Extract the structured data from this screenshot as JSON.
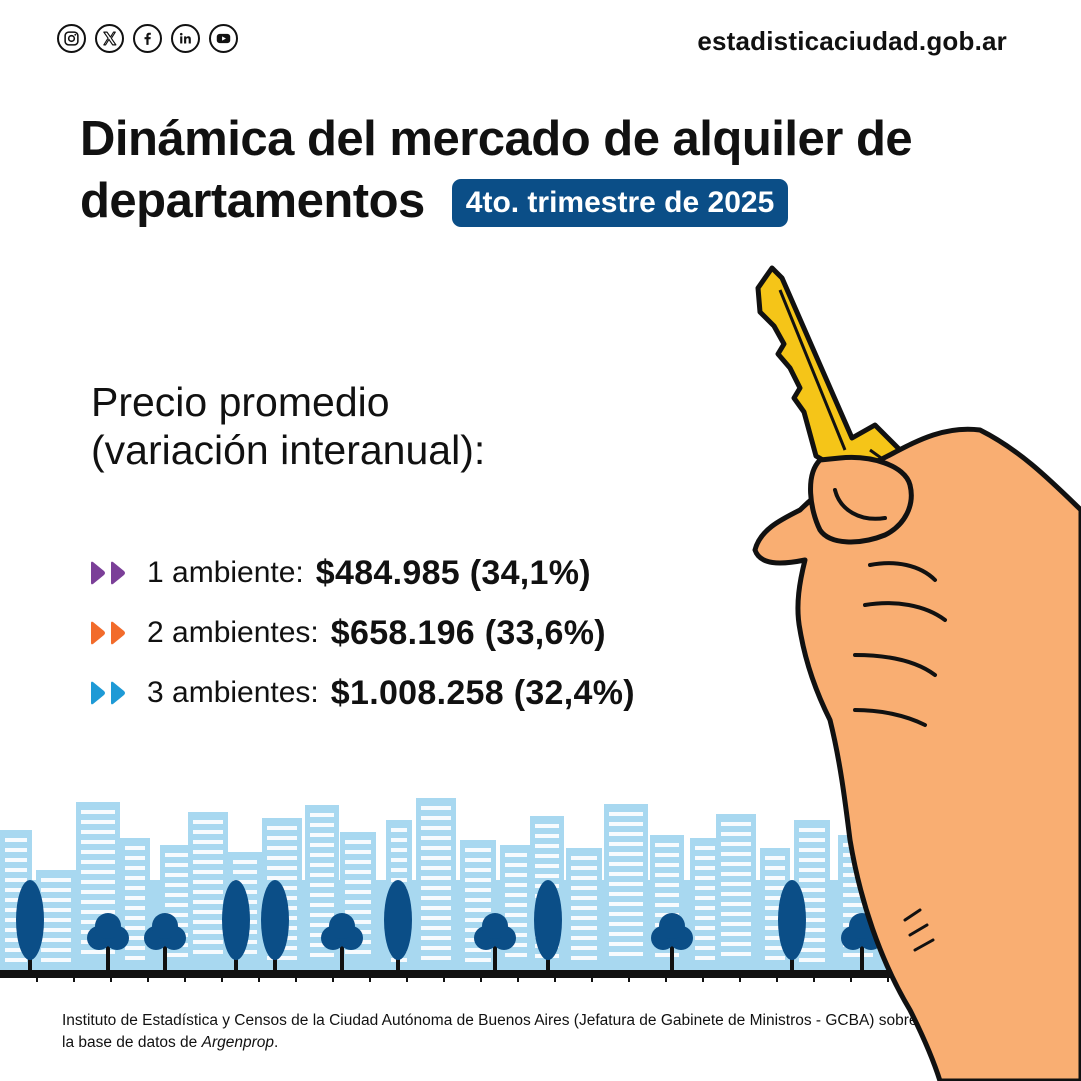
{
  "header": {
    "social_icons": [
      "instagram-icon",
      "x-icon",
      "facebook-icon",
      "linkedin-icon",
      "youtube-icon"
    ],
    "site_url": "estadisticaciudad.gob.ar"
  },
  "title": {
    "line1": "Dinámica del mercado de alquiler de",
    "line2": "departamentos",
    "badge": "4to. trimestre de 2025"
  },
  "subtitle": {
    "line1": "Precio promedio",
    "line2": "(variación interanual):"
  },
  "prices": [
    {
      "label": "1 ambiente:",
      "value": "$484.985 (34,1%)",
      "color": "#7b3f98"
    },
    {
      "label": "2 ambientes:",
      "value": "$658.196 (33,6%)",
      "color": "#f26b2b"
    },
    {
      "label": "3 ambientes:",
      "value": "$1.008.258 (32,4%)",
      "color": "#1e9ad6"
    }
  ],
  "footer": {
    "text": "Instituto de Estadística y Censos de la Ciudad Autónoma de Buenos Aires (Jefatura de Gabinete de Ministros - GCBA) sobre la  base de datos de",
    "source": "Argenprop",
    "period": "."
  },
  "colors": {
    "badge": "#0b4e87",
    "buildings": "#a8d8f0",
    "trees": "#0b4e87",
    "key": "#f5c518",
    "hand": "#f9ae72"
  }
}
